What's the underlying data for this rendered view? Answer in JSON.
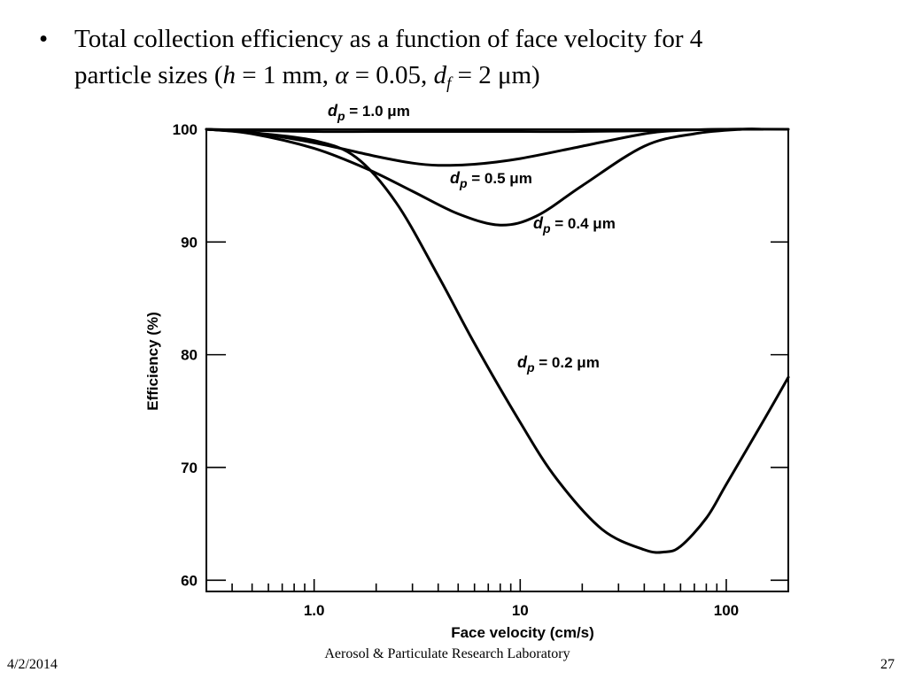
{
  "slide": {
    "bullet_symbol": "•",
    "bullet_line1": "Total collection efficiency as a function of face velocity for 4",
    "bullet_line2_start": "particle sizes (",
    "h_symbol": "h",
    "h_value": " = 1 mm, ",
    "alpha_symbol": "α",
    "alpha_value": " = 0.05, ",
    "d_symbol": "d",
    "f_subscript": "f",
    "df_value": " = 2 μm)"
  },
  "footer": {
    "date": "4/2/2014",
    "lab": "Aerosol & Particulate Research Laboratory",
    "page": "27"
  },
  "chart_data": {
    "type": "line",
    "xlabel": "Face velocity (cm/s)",
    "ylabel": "Efficiency (%)",
    "x_scale": "log",
    "xlim": [
      0.3,
      200
    ],
    "ylim": [
      59,
      100
    ],
    "x_ticks": [
      1.0,
      10,
      100
    ],
    "x_tick_labels": [
      "1.0",
      "10",
      "100"
    ],
    "y_ticks": [
      60,
      70,
      80,
      90,
      100
    ],
    "y_tick_labels": [
      "60",
      "70",
      "80",
      "90",
      "100"
    ],
    "grid": false,
    "series": [
      {
        "name": "d_p = 1.0 μm",
        "label_main": "d",
        "label_sub": "p",
        "label_rest": " = 1.0 μm",
        "x": [
          0.3,
          0.5,
          1.0,
          2.0,
          5.0,
          10,
          20,
          50,
          100,
          200
        ],
        "y": [
          100,
          99.9,
          99.8,
          99.8,
          99.8,
          99.8,
          99.8,
          99.9,
          100,
          100
        ]
      },
      {
        "name": "d_p = 0.5 μm",
        "label_main": "d",
        "label_sub": "p",
        "label_rest": " = 0.5 μm",
        "x": [
          0.3,
          0.5,
          1.0,
          2.0,
          3.0,
          4.0,
          6.0,
          10,
          20,
          40,
          60,
          100,
          150
        ],
        "y": [
          100,
          99.7,
          98.8,
          97.6,
          97.0,
          96.8,
          96.9,
          97.4,
          98.5,
          99.6,
          99.9,
          100,
          100
        ]
      },
      {
        "name": "d_p = 0.4 μm",
        "label_main": "d",
        "label_sub": "p",
        "label_rest": " = 0.4 μm",
        "x": [
          0.3,
          0.5,
          1.0,
          1.8,
          3.0,
          5.0,
          8.0,
          12,
          20,
          40,
          70,
          120,
          150
        ],
        "y": [
          100,
          99.6,
          98.3,
          96.5,
          94.5,
          92.5,
          91.5,
          92.3,
          95.0,
          98.5,
          99.6,
          100,
          100
        ]
      },
      {
        "name": "d_p = 0.2 μm",
        "label_main": "d",
        "label_sub": "p",
        "label_rest": " = 0.2 μm",
        "x": [
          0.3,
          0.5,
          1.0,
          1.6,
          2.5,
          4.0,
          6.0,
          10,
          15,
          25,
          40,
          50,
          60,
          80,
          100,
          150,
          200
        ],
        "y": [
          100,
          99.7,
          99.0,
          97.5,
          93.5,
          87.0,
          81.0,
          74.0,
          69.0,
          64.5,
          62.7,
          62.5,
          63.0,
          65.5,
          68.5,
          74.0,
          78.0
        ]
      }
    ]
  }
}
